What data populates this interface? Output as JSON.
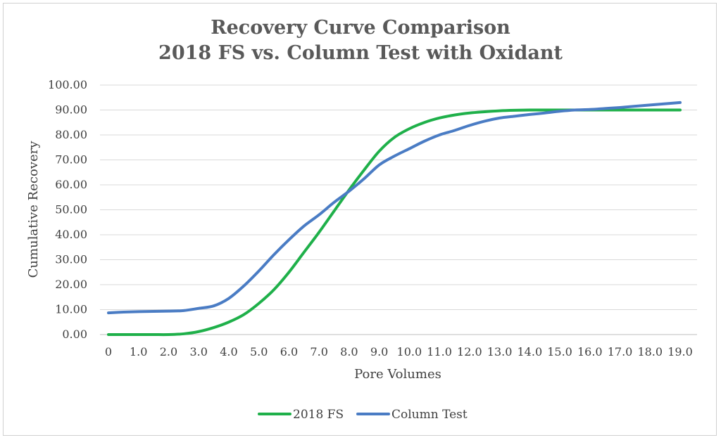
{
  "chart_data": {
    "type": "line",
    "title_line1": "Recovery Curve Comparison",
    "title_line2": "2018 FS vs. Column Test with Oxidant",
    "xlabel": "Pore Volumes",
    "ylabel": "Cumulative Recovery",
    "x_ticks": [
      "0",
      "1.0",
      "2.0",
      "3.0",
      "4.0",
      "5.0",
      "6.0",
      "7.0",
      "8.0",
      "9.0",
      "10.0",
      "11.0",
      "12.0",
      "13.0",
      "14.0",
      "15.0",
      "16.0",
      "17.0",
      "18.0",
      "19.0"
    ],
    "y_ticks": [
      "0.00",
      "10.00",
      "20.00",
      "30.00",
      "40.00",
      "50.00",
      "60.00",
      "70.00",
      "80.00",
      "90.00",
      "100.00"
    ],
    "xlim": [
      0,
      19
    ],
    "ylim": [
      0,
      100
    ],
    "grid": true,
    "legend_position": "bottom",
    "series": [
      {
        "name": "2018 FS",
        "color": "#1fb04a",
        "x": [
          0,
          0.5,
          1,
          1.5,
          2,
          2.5,
          3,
          3.5,
          4,
          4.5,
          5,
          5.5,
          6,
          6.5,
          7,
          7.5,
          8,
          8.5,
          9,
          9.5,
          10,
          10.5,
          11,
          11.5,
          12,
          12.5,
          13,
          13.5,
          14,
          14.5,
          15,
          15.5,
          16,
          16.5,
          17,
          17.5,
          18,
          18.5,
          19
        ],
        "y": [
          0,
          0,
          0,
          0,
          0,
          0.3,
          1.2,
          2.8,
          5,
          8,
          12.5,
          18,
          25,
          33,
          41,
          49.5,
          58,
          66,
          73.5,
          79,
          82.5,
          85,
          86.8,
          88,
          88.8,
          89.3,
          89.7,
          89.9,
          90,
          90,
          90,
          90,
          90,
          90,
          90,
          90,
          90,
          90,
          90
        ]
      },
      {
        "name": "Column Test",
        "color": "#4a7cc4",
        "x": [
          0,
          0.5,
          1,
          1.5,
          2,
          2.5,
          3,
          3.5,
          4,
          4.5,
          5,
          5.5,
          6,
          6.5,
          7,
          7.5,
          8,
          8.5,
          9,
          9.5,
          10,
          10.5,
          11,
          11.5,
          12,
          12.5,
          13,
          13.5,
          14,
          14.5,
          15,
          15.5,
          16,
          16.5,
          17,
          17.5,
          18,
          18.5,
          19
        ],
        "y": [
          8.7,
          9,
          9.2,
          9.3,
          9.4,
          9.6,
          10.5,
          11.5,
          14.5,
          19.5,
          25.5,
          32,
          38,
          43.5,
          48,
          53,
          57.5,
          62.5,
          68,
          71.5,
          74.5,
          77.5,
          80,
          81.8,
          83.8,
          85.5,
          86.8,
          87.5,
          88.2,
          88.8,
          89.5,
          90,
          90.2,
          90.6,
          91,
          91.5,
          92,
          92.5,
          93
        ]
      }
    ]
  }
}
